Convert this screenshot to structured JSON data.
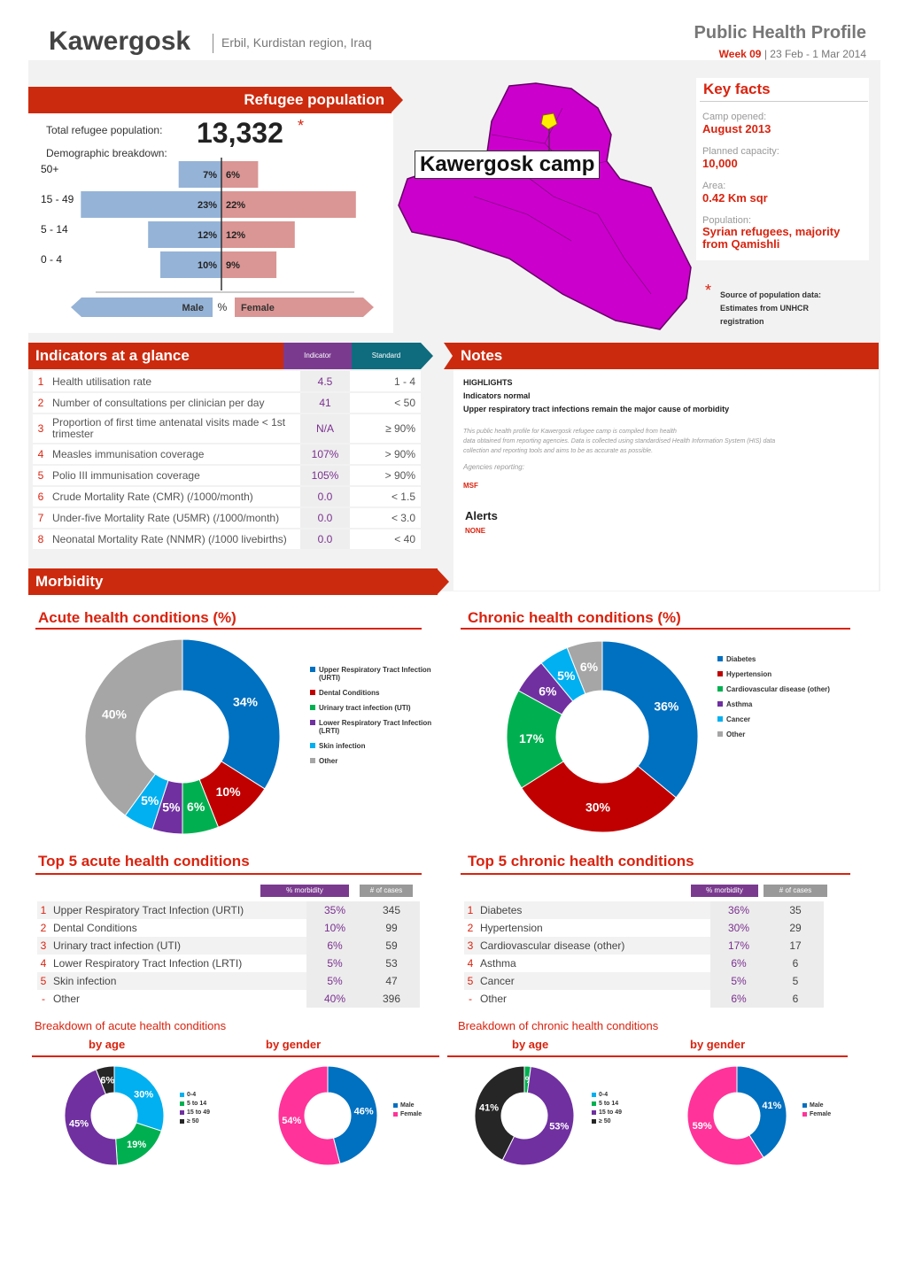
{
  "header": {
    "title": "Kawergosk",
    "location": "Erbil, Kurdistan region, Iraq",
    "profile_title": "Public Health Profile",
    "week": "Week 09",
    "dates": "| 23 Feb - 1 Mar 2014"
  },
  "refugee": {
    "section_title": "Refugee population",
    "total_label": "Total refugee population:",
    "total_value": "13,332",
    "asterisk": "*",
    "demo_label": "Demographic breakdown:",
    "age_groups": [
      {
        "label": "50+",
        "male": 7,
        "female": 6,
        "male_text": "7%",
        "female_text": "6%"
      },
      {
        "label": "15 - 49",
        "male": 23,
        "female": 22,
        "male_text": "23%",
        "female_text": "22%"
      },
      {
        "label": "5 - 14",
        "male": 12,
        "female": 12,
        "male_text": "12%",
        "female_text": "12%"
      },
      {
        "label": "0 - 4",
        "male": 10,
        "female": 9,
        "male_text": "10%",
        "female_text": "9%"
      }
    ],
    "axis_male": "Male",
    "axis_pct": "%",
    "axis_female": "Female"
  },
  "map": {
    "camp_label": "Kawergosk camp"
  },
  "key_facts": {
    "title": "Key facts",
    "items": [
      {
        "label": "Camp opened:",
        "value": "August 2013"
      },
      {
        "label": "Planned capacity:",
        "value": "10,000"
      },
      {
        "label": "Area:",
        "value": "0.42 Km sqr"
      },
      {
        "label": "Population:",
        "value": "Syrian refugees, majority from Qamishli"
      }
    ],
    "source_asterisk": "*",
    "source_line1": "Source of population data:",
    "source_line2": "Estimates from UNHCR",
    "source_line3": "registration"
  },
  "indicators": {
    "title": "Indicators at a glance",
    "col_indicator": "Indicator",
    "col_standard": "Standard",
    "rows": [
      {
        "n": "1",
        "label": "Health utilisation rate",
        "value": "4.5",
        "standard": "1 - 4"
      },
      {
        "n": "2",
        "label": "Number of consultations per clinician per day",
        "value": "41",
        "standard": "< 50"
      },
      {
        "n": "3",
        "label": "Proportion of first time antenatal visits made < 1st trimester",
        "value": "N/A",
        "standard": "≥ 90%"
      },
      {
        "n": "4",
        "label": "Measles immunisation coverage",
        "value": "107%",
        "standard": "> 90%"
      },
      {
        "n": "5",
        "label": "Polio III immunisation coverage",
        "value": "105%",
        "standard": "> 90%"
      },
      {
        "n": "6",
        "label": "Crude Mortality Rate (CMR) (/1000/month)",
        "value": "0.0",
        "standard": "< 1.5"
      },
      {
        "n": "7",
        "label": "Under-five Mortality Rate (U5MR) (/1000/month)",
        "value": "0.0",
        "standard": "< 3.0"
      },
      {
        "n": "8",
        "label": "Neonatal Mortality Rate (NNMR) (/1000 livebirths)",
        "value": "0.0",
        "standard": "< 40"
      }
    ]
  },
  "notes": {
    "title": "Notes",
    "highlights": "HIGHLIGHTS",
    "line1": "Indicators normal",
    "line2": "Upper respiratory tract infections remain the major cause of morbidity",
    "para1": "This public health profile for Kawergosk refugee camp is compiled from health",
    "para2": "data obtained from reporting agencies. Data is collected using standardised Health Information System (HIS) data",
    "para3": "collection and reporting tools and aims to be as accurate as possible.",
    "agencies_label": "Agencies reporting:",
    "agencies": "MSF",
    "alerts_title": "Alerts",
    "alerts_value": "NONE"
  },
  "morbidity": {
    "title": "Morbidity",
    "acute_title": "Acute health conditions (%)",
    "chronic_title": "Chronic health conditions (%)",
    "top5_acute_title": "Top 5 acute health conditions",
    "top5_chronic_title": "Top 5 chronic health conditions",
    "col_morbidity": "% morbidity",
    "col_cases": "# of cases",
    "acute_rows": [
      {
        "n": "1",
        "label": "Upper Respiratory Tract Infection (URTI)",
        "pct": "35%",
        "cases": "345"
      },
      {
        "n": "2",
        "label": "Dental Conditions",
        "pct": "10%",
        "cases": "99"
      },
      {
        "n": "3",
        "label": "Urinary tract infection (UTI)",
        "pct": "6%",
        "cases": "59"
      },
      {
        "n": "4",
        "label": "Lower Respiratory Tract Infection (LRTI)",
        "pct": "5%",
        "cases": "53"
      },
      {
        "n": "5",
        "label": "Skin infection",
        "pct": "5%",
        "cases": "47"
      },
      {
        "n": "-",
        "label": "Other",
        "pct": "40%",
        "cases": "396"
      }
    ],
    "chronic_rows": [
      {
        "n": "1",
        "label": "Diabetes",
        "pct": "36%",
        "cases": "35"
      },
      {
        "n": "2",
        "label": "Hypertension",
        "pct": "30%",
        "cases": "29"
      },
      {
        "n": "3",
        "label": "Cardiovascular disease (other)",
        "pct": "17%",
        "cases": "17"
      },
      {
        "n": "4",
        "label": "Asthma",
        "pct": "6%",
        "cases": "6"
      },
      {
        "n": "5",
        "label": "Cancer",
        "pct": "5%",
        "cases": "5"
      },
      {
        "n": "-",
        "label": "Other",
        "pct": "6%",
        "cases": "6"
      }
    ],
    "breakdown_acute": "Breakdown of acute health conditions",
    "breakdown_chronic": "Breakdown of chronic health conditions",
    "by_age": "by age",
    "by_gender": "by gender"
  },
  "chart_data": [
    {
      "type": "pie",
      "title": "Acute health conditions (%)",
      "categories": [
        "Upper Respiratory Tract Infection (URTI)",
        "Dental Conditions",
        "Urinary tract infection (UTI)",
        "Lower Respiratory Tract Infection (LRTI)",
        "Skin infection",
        "Other"
      ],
      "values": [
        34,
        10,
        6,
        5,
        5,
        40
      ],
      "labels": [
        "34%",
        "10%",
        "6%",
        "5%",
        "5%",
        "40%"
      ],
      "colors": [
        "#0070c0",
        "#c00000",
        "#00b050",
        "#7030a0",
        "#00b0f0",
        "#a6a6a6"
      ]
    },
    {
      "type": "pie",
      "title": "Chronic health conditions (%)",
      "categories": [
        "Diabetes",
        "Hypertension",
        "Cardiovascular disease (other)",
        "Asthma",
        "Cancer",
        "Other"
      ],
      "values": [
        36,
        30,
        17,
        6,
        5,
        6
      ],
      "labels": [
        "36%",
        "30%",
        "17%",
        "6%",
        "5%",
        "6%"
      ],
      "colors": [
        "#0070c0",
        "#c00000",
        "#00b050",
        "#7030a0",
        "#00b0f0",
        "#a6a6a6"
      ]
    },
    {
      "type": "pie",
      "title": "by age",
      "categories": [
        "0-4",
        "5 to 14",
        "15 to 49",
        "≥ 50"
      ],
      "values": [
        30,
        19,
        45,
        6
      ],
      "labels": [
        "30%",
        "19%",
        "45%",
        "6%"
      ],
      "colors": [
        "#00b0f0",
        "#00b050",
        "#7030a0",
        "#262626"
      ]
    },
    {
      "type": "pie",
      "title": "by gender",
      "categories": [
        "Male",
        "Female"
      ],
      "values": [
        46,
        54
      ],
      "labels": [
        "46%",
        "54%"
      ],
      "colors": [
        "#0070c0",
        "#ff3399"
      ]
    },
    {
      "type": "pie",
      "title": "by age",
      "categories": [
        "0-4",
        "5 to 14",
        "15 to 49",
        "≥ 50"
      ],
      "values": [
        0,
        2,
        53,
        41
      ],
      "labels": [
        "",
        "2%",
        "53%",
        "41%"
      ],
      "colors": [
        "#00b0f0",
        "#00b050",
        "#7030a0",
        "#262626"
      ]
    },
    {
      "type": "pie",
      "title": "by gender",
      "categories": [
        "Male",
        "Female"
      ],
      "values": [
        41,
        59
      ],
      "labels": [
        "41%",
        "59%"
      ],
      "colors": [
        "#0070c0",
        "#ff3399"
      ]
    }
  ]
}
